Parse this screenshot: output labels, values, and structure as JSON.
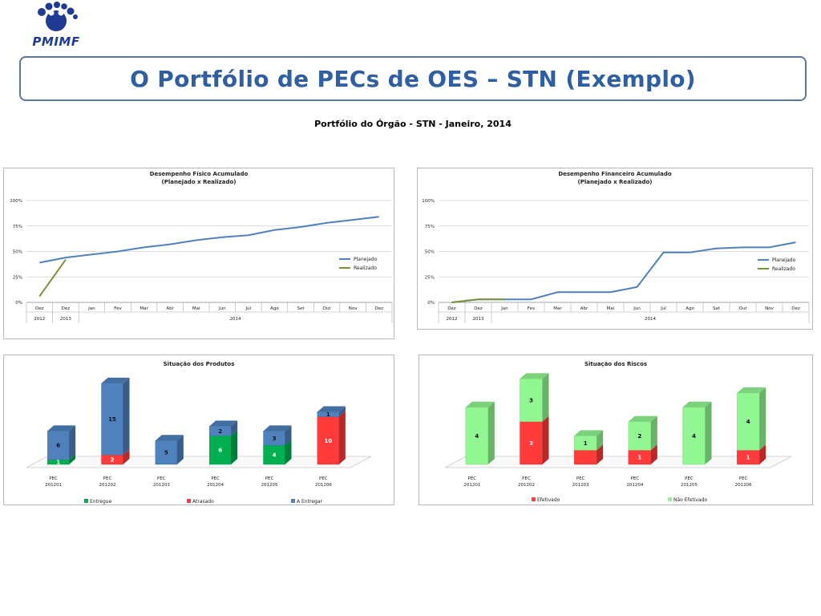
{
  "logo": {
    "text": "PMIMF"
  },
  "header": {
    "title": "O Portfólio de PECs de OES – STN (Exemplo)",
    "subtitle": "Portfólio do Órgão - STN - Janeiro, 2014"
  },
  "colors": {
    "planejado": "#4f81bd",
    "realizado": "#77933c",
    "entregue": "#00b050",
    "atrasado": "#ff3b3b",
    "a_entregar": "#4f81bd",
    "efetivado": "#ff3b3b",
    "nao_efetivado": "#92f792",
    "title": "#2f5fa0"
  },
  "chart_data": [
    {
      "id": "fisico",
      "type": "line",
      "title": [
        "Desempenho Físico Acumulado",
        "(Planejado x Realizado)"
      ],
      "categories": [
        "Dez",
        "Dez",
        "Jan",
        "Fev",
        "Mar",
        "Abr",
        "Mai",
        "Jun",
        "Jul",
        "Ago",
        "Set",
        "Out",
        "Nov",
        "Dez"
      ],
      "year_groups": [
        {
          "label": "2012",
          "span": 1
        },
        {
          "label": "2013",
          "span": 1
        },
        {
          "label": "2014",
          "span": 12
        }
      ],
      "y_ticks": [
        "0%",
        "25%",
        "50%",
        "75%",
        "100%"
      ],
      "ylim": [
        0,
        100
      ],
      "legend_position": "right",
      "series": [
        {
          "name": "Planejado",
          "values": [
            39,
            44,
            47,
            50,
            54,
            57,
            61,
            64,
            66,
            71,
            74,
            78,
            81,
            84
          ]
        },
        {
          "name": "Realizado",
          "values": [
            6,
            42,
            null,
            null,
            null,
            null,
            null,
            null,
            null,
            null,
            null,
            null,
            null,
            null
          ]
        }
      ]
    },
    {
      "id": "financeiro",
      "type": "line",
      "title": [
        "Desempenho Financeiro Acumulado",
        "(Planejado x Realizado)"
      ],
      "categories": [
        "Dez",
        "Dez",
        "Jan",
        "Fev",
        "Mar",
        "Abr",
        "Mai",
        "Jun",
        "Jul",
        "Ago",
        "Set",
        "Out",
        "Nov",
        "Dez"
      ],
      "year_groups": [
        {
          "label": "2012",
          "span": 1
        },
        {
          "label": "2013",
          "span": 1
        },
        {
          "label": "2014",
          "span": 12
        }
      ],
      "y_ticks": [
        "0%",
        "25%",
        "50%",
        "75%",
        "100%"
      ],
      "ylim": [
        0,
        100
      ],
      "legend_position": "right",
      "series": [
        {
          "name": "Planejado",
          "values": [
            0,
            3,
            3,
            3,
            10,
            10,
            10,
            15,
            49,
            49,
            53,
            54,
            54,
            59
          ]
        },
        {
          "name": "Realizado",
          "values": [
            0,
            3,
            3,
            null,
            null,
            null,
            null,
            null,
            null,
            null,
            null,
            null,
            null,
            null
          ]
        }
      ]
    },
    {
      "id": "produtos",
      "type": "bar",
      "stacked": true,
      "title": [
        "Situação dos Produtos"
      ],
      "categories": [
        [
          "PEC",
          "201201"
        ],
        [
          "PEC",
          "201202"
        ],
        [
          "PEC",
          "201203"
        ],
        [
          "PEC",
          "201204"
        ],
        [
          "PEC",
          "201205"
        ],
        [
          "PEC",
          "201206"
        ]
      ],
      "legend_position": "bottom",
      "series": [
        {
          "name": "Entregue",
          "values": [
            1,
            0,
            0,
            6,
            4,
            0
          ],
          "labels": [
            "1",
            "",
            "",
            "6",
            "4",
            ""
          ]
        },
        {
          "name": "Atrasado",
          "values": [
            0,
            2,
            0,
            0,
            0,
            10
          ],
          "labels": [
            "",
            "2",
            "",
            "",
            "",
            "10"
          ]
        },
        {
          "name": "A Entregar",
          "values": [
            6,
            15,
            5,
            2,
            3,
            1
          ],
          "labels": [
            "6",
            "15",
            "5",
            "2",
            "3",
            "1"
          ]
        }
      ]
    },
    {
      "id": "riscos",
      "type": "bar",
      "stacked": true,
      "title": [
        "Situação dos Riscos"
      ],
      "categories": [
        [
          "PEC",
          "201201"
        ],
        [
          "PEC",
          "201202"
        ],
        [
          "PEC",
          "201203"
        ],
        [
          "PEC",
          "201204"
        ],
        [
          "PEC",
          "201205"
        ],
        [
          "PEC",
          "201206"
        ]
      ],
      "legend_position": "bottom",
      "series": [
        {
          "name": "Efetivado",
          "values": [
            0,
            3,
            1,
            1,
            0,
            1
          ],
          "labels": [
            "",
            "3",
            "",
            "1",
            "",
            "1"
          ]
        },
        {
          "name": "Não Efetivado",
          "values": [
            4,
            3,
            1,
            2,
            4,
            4
          ],
          "labels": [
            "4",
            "3",
            "1",
            "2",
            "4",
            "4"
          ]
        }
      ]
    }
  ]
}
